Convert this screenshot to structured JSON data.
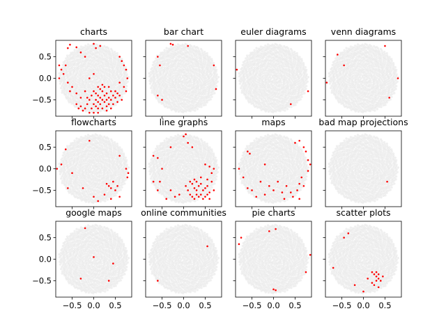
{
  "chart_data": {
    "type": "scatter",
    "layout": "3x4 grid of subplots",
    "background_color": "#e3e3e3",
    "highlight_color": "#ff0000",
    "xlim": [
      -0.88,
      0.88
    ],
    "ylim": [
      -0.88,
      0.88
    ],
    "xticks": [
      -0.5,
      0.0,
      0.5
    ],
    "xtick_labels": [
      "−0.5",
      "0.0",
      "0.5"
    ],
    "yticks": [
      0.5,
      0.0,
      -0.5
    ],
    "ytick_labels": [
      "0.5",
      "0.0",
      "−0.5"
    ],
    "x_ticks_labeled_on_bottom_row_only": true,
    "y_ticks_labeled_on_left_column_only": true,
    "grid": false,
    "panels": [
      {
        "title": "charts",
        "points": [
          [
            -0.6,
            0.7
          ],
          [
            -0.55,
            0.78
          ],
          [
            -0.4,
            0.72
          ],
          [
            -0.3,
            0.6
          ],
          [
            -0.2,
            0.5
          ],
          [
            0.0,
            0.8
          ],
          [
            0.05,
            0.7
          ],
          [
            0.15,
            0.75
          ],
          [
            -0.8,
            0.3
          ],
          [
            -0.75,
            0.2
          ],
          [
            -0.7,
            0.1
          ],
          [
            -0.65,
            0.3
          ],
          [
            -0.8,
            0.0
          ],
          [
            -0.6,
            -0.1
          ],
          [
            -0.55,
            -0.3
          ],
          [
            -0.5,
            -0.2
          ],
          [
            -0.4,
            -0.35
          ],
          [
            -0.3,
            -0.45
          ],
          [
            0.6,
            0.5
          ],
          [
            0.65,
            0.4
          ],
          [
            0.7,
            0.3
          ],
          [
            0.75,
            0.2
          ],
          [
            0.78,
            0.0
          ],
          [
            0.7,
            -0.2
          ],
          [
            0.75,
            -0.3
          ],
          [
            0.6,
            -0.1
          ],
          [
            0.5,
            -0.3
          ],
          [
            -0.1,
            0.0
          ],
          [
            0.0,
            0.1
          ],
          [
            0.1,
            -0.2
          ],
          [
            -0.4,
            -0.6
          ],
          [
            -0.35,
            -0.7
          ],
          [
            -0.3,
            -0.65
          ],
          [
            -0.25,
            -0.75
          ],
          [
            -0.2,
            -0.7
          ],
          [
            -0.15,
            -0.6
          ],
          [
            -0.1,
            -0.5
          ],
          [
            -0.05,
            -0.7
          ],
          [
            0.0,
            -0.6
          ],
          [
            0.0,
            -0.8
          ],
          [
            0.05,
            -0.5
          ],
          [
            0.05,
            -0.65
          ],
          [
            0.1,
            -0.4
          ],
          [
            0.1,
            -0.55
          ],
          [
            0.1,
            -0.7
          ],
          [
            0.15,
            -0.45
          ],
          [
            0.15,
            -0.6
          ],
          [
            0.2,
            -0.3
          ],
          [
            0.2,
            -0.5
          ],
          [
            0.2,
            -0.7
          ],
          [
            0.25,
            -0.4
          ],
          [
            0.25,
            -0.55
          ],
          [
            0.3,
            -0.35
          ],
          [
            0.3,
            -0.5
          ],
          [
            0.3,
            -0.65
          ],
          [
            0.35,
            -0.45
          ],
          [
            0.35,
            -0.6
          ],
          [
            0.4,
            -0.3
          ],
          [
            0.4,
            -0.5
          ],
          [
            0.45,
            -0.4
          ],
          [
            0.45,
            -0.6
          ],
          [
            0.5,
            -0.45
          ],
          [
            0.55,
            -0.35
          ],
          [
            0.55,
            -0.55
          ],
          [
            0.6,
            -0.4
          ],
          [
            0.65,
            -0.5
          ],
          [
            -0.05,
            -0.4
          ],
          [
            -0.15,
            -0.45
          ],
          [
            0.0,
            -0.3
          ],
          [
            0.05,
            -0.35
          ],
          [
            0.15,
            -0.25
          ],
          [
            0.25,
            -0.2
          ],
          [
            0.1,
            -0.8
          ],
          [
            -0.1,
            -0.8
          ],
          [
            0.2,
            -0.15
          ],
          [
            0.35,
            -0.2
          ],
          [
            -0.2,
            -0.3
          ],
          [
            0.3,
            -0.75
          ],
          [
            0.4,
            -0.7
          ]
        ]
      },
      {
        "title": "bar chart",
        "points": [
          [
            -0.3,
            0.8
          ],
          [
            -0.25,
            0.78
          ],
          [
            0.1,
            0.75
          ],
          [
            -0.6,
            0.5
          ],
          [
            -0.55,
            0.3
          ],
          [
            -0.6,
            -0.4
          ],
          [
            -0.5,
            -0.5
          ],
          [
            0.75,
            -0.25
          ],
          [
            0.7,
            0.3
          ]
        ]
      },
      {
        "title": "euler diagrams",
        "points": [
          [
            -0.85,
            0.2
          ],
          [
            0.8,
            -0.3
          ],
          [
            0.4,
            -0.6
          ]
        ]
      },
      {
        "title": "venn diagrams",
        "points": [
          [
            -0.6,
            0.55
          ],
          [
            -0.45,
            0.3
          ],
          [
            0.5,
            0.75
          ],
          [
            -0.85,
            -0.1
          ],
          [
            0.8,
            0.0
          ],
          [
            0.6,
            -0.45
          ]
        ]
      },
      {
        "title": "flowcharts",
        "points": [
          [
            -0.65,
            0.45
          ],
          [
            -0.1,
            0.65
          ],
          [
            -0.85,
            0.0
          ],
          [
            -0.75,
            0.1
          ],
          [
            -0.6,
            -0.45
          ],
          [
            -0.25,
            -0.45
          ],
          [
            0.0,
            -0.65
          ],
          [
            -0.5,
            -0.1
          ],
          [
            0.6,
            0.3
          ],
          [
            0.75,
            0.0
          ],
          [
            0.8,
            -0.1
          ],
          [
            0.78,
            -0.2
          ],
          [
            0.3,
            -0.35
          ],
          [
            0.35,
            -0.4
          ],
          [
            0.4,
            -0.45
          ],
          [
            0.45,
            -0.3
          ],
          [
            0.5,
            -0.5
          ],
          [
            0.55,
            -0.4
          ],
          [
            0.25,
            -0.6
          ],
          [
            0.4,
            -0.7
          ],
          [
            0.1,
            -0.75
          ],
          [
            0.6,
            -0.65
          ]
        ]
      },
      {
        "title": "line graphs",
        "points": [
          [
            0.05,
            0.8
          ],
          [
            0.0,
            0.75
          ],
          [
            0.1,
            0.6
          ],
          [
            -0.7,
            0.3
          ],
          [
            -0.6,
            0.25
          ],
          [
            -0.5,
            0.0
          ],
          [
            -0.55,
            -0.3
          ],
          [
            -0.7,
            -0.3
          ],
          [
            -0.6,
            -0.5
          ],
          [
            -0.3,
            -0.5
          ],
          [
            -0.1,
            -0.6
          ],
          [
            -0.3,
            0.5
          ],
          [
            0.2,
            0.5
          ],
          [
            0.5,
            0.1
          ],
          [
            0.6,
            0.05
          ],
          [
            0.7,
            0.0
          ],
          [
            0.65,
            -0.1
          ],
          [
            0.3,
            -0.3
          ],
          [
            0.2,
            -0.35
          ],
          [
            0.25,
            -0.45
          ],
          [
            0.3,
            -0.5
          ],
          [
            0.35,
            -0.4
          ],
          [
            0.4,
            -0.35
          ],
          [
            0.45,
            -0.5
          ],
          [
            0.5,
            -0.45
          ],
          [
            0.55,
            -0.4
          ],
          [
            0.6,
            -0.55
          ],
          [
            0.65,
            -0.3
          ],
          [
            0.7,
            -0.5
          ],
          [
            0.1,
            -0.5
          ],
          [
            0.15,
            -0.6
          ],
          [
            0.2,
            -0.65
          ],
          [
            0.25,
            -0.7
          ],
          [
            0.3,
            -0.6
          ],
          [
            0.35,
            -0.65
          ],
          [
            0.4,
            -0.6
          ],
          [
            0.45,
            -0.7
          ],
          [
            0.5,
            -0.65
          ],
          [
            0.55,
            -0.6
          ],
          [
            0.6,
            -0.7
          ],
          [
            0.05,
            -0.4
          ],
          [
            0.15,
            -0.3
          ],
          [
            0.25,
            -0.25
          ],
          [
            -0.2,
            -0.65
          ],
          [
            -0.4,
            -0.7
          ],
          [
            0.4,
            -0.2
          ],
          [
            0.55,
            -0.25
          ]
        ]
      },
      {
        "title": "maps",
        "points": [
          [
            -0.6,
            0.4
          ],
          [
            -0.55,
            0.35
          ],
          [
            0.5,
            0.6
          ],
          [
            0.6,
            0.65
          ],
          [
            0.7,
            0.5
          ],
          [
            0.75,
            0.4
          ],
          [
            0.8,
            0.2
          ],
          [
            0.85,
            0.1
          ],
          [
            -0.7,
            -0.2
          ],
          [
            -0.6,
            -0.45
          ],
          [
            -0.5,
            -0.5
          ],
          [
            -0.4,
            -0.65
          ],
          [
            -0.2,
            -0.6
          ],
          [
            -0.1,
            -0.4
          ],
          [
            0.0,
            -0.5
          ],
          [
            0.1,
            -0.3
          ],
          [
            0.2,
            -0.55
          ],
          [
            0.3,
            -0.4
          ],
          [
            0.4,
            -0.55
          ],
          [
            0.45,
            -0.65
          ],
          [
            0.55,
            -0.5
          ],
          [
            0.6,
            -0.35
          ],
          [
            0.65,
            -0.2
          ],
          [
            -0.2,
            0.1
          ],
          [
            0.25,
            -0.7
          ],
          [
            0.6,
            -0.7
          ],
          [
            -0.3,
            -0.3
          ],
          [
            0.7,
            -0.4
          ],
          [
            0.8,
            -0.05
          ],
          [
            -0.8,
            0.0
          ]
        ]
      },
      {
        "title": "bad map projections",
        "points": [
          [
            0.55,
            -0.3
          ]
        ]
      },
      {
        "title": "google maps",
        "points": [
          [
            -0.2,
            0.72
          ],
          [
            0.0,
            0.05
          ],
          [
            -0.3,
            -0.45
          ],
          [
            0.45,
            -0.1
          ],
          [
            0.35,
            -0.5
          ]
        ]
      },
      {
        "title": "online communities",
        "points": [
          [
            0.55,
            0.3
          ],
          [
            -0.6,
            -0.5
          ]
        ]
      },
      {
        "title": "pie charts",
        "points": [
          [
            -0.75,
            0.5
          ],
          [
            -0.8,
            0.35
          ],
          [
            -0.1,
            0.65
          ],
          [
            0.05,
            0.7
          ],
          [
            0.85,
            0.1
          ],
          [
            0.75,
            -0.3
          ],
          [
            0.0,
            -0.7
          ],
          [
            0.05,
            -0.72
          ]
        ]
      },
      {
        "title": "scatter plots",
        "points": [
          [
            -0.45,
            0.5
          ],
          [
            -0.35,
            0.6
          ],
          [
            -0.7,
            -0.2
          ],
          [
            0.0,
            -0.75
          ],
          [
            0.2,
            -0.3
          ],
          [
            0.25,
            -0.35
          ],
          [
            0.3,
            -0.3
          ],
          [
            0.35,
            -0.35
          ],
          [
            0.3,
            -0.4
          ],
          [
            0.35,
            -0.45
          ],
          [
            0.4,
            -0.5
          ],
          [
            0.3,
            -0.5
          ],
          [
            0.2,
            -0.55
          ],
          [
            0.25,
            -0.6
          ],
          [
            0.1,
            -0.45
          ],
          [
            0.45,
            -0.4
          ],
          [
            0.35,
            -0.65
          ],
          [
            -0.2,
            -0.6
          ]
        ]
      }
    ]
  }
}
